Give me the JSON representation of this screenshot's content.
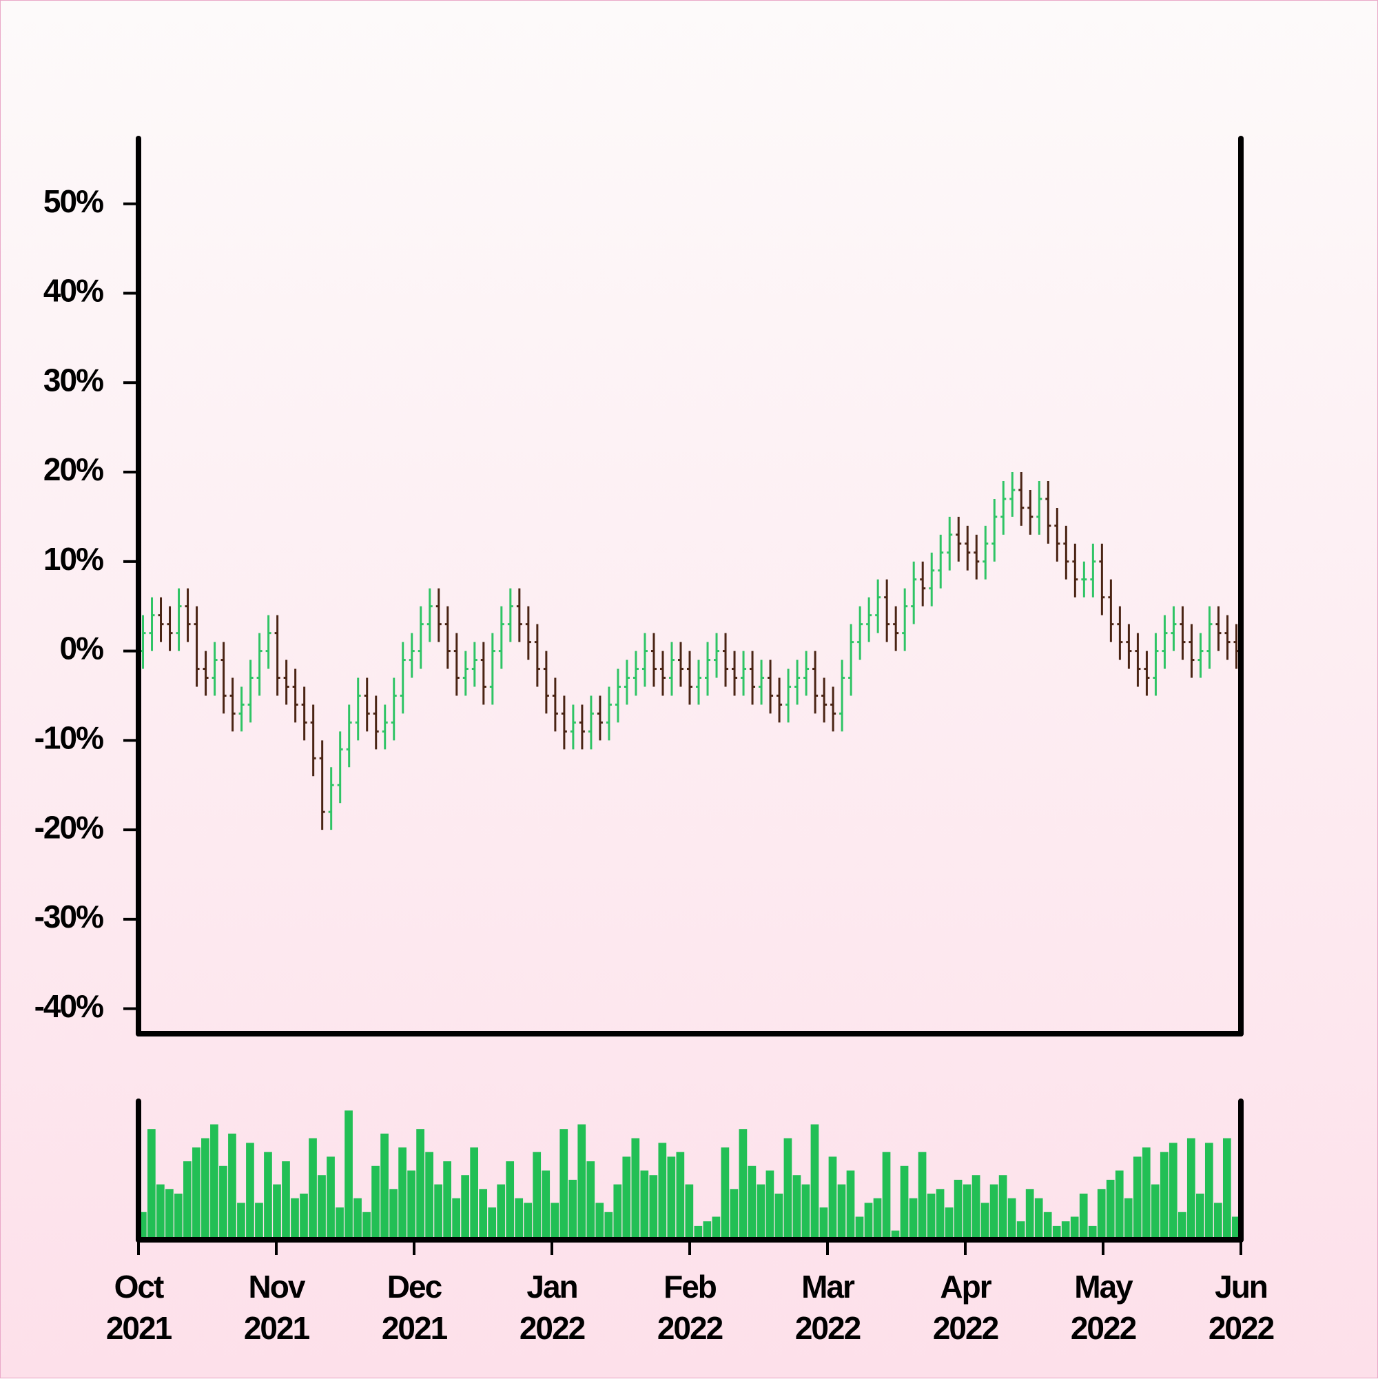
{
  "chart_data": {
    "type": "ohlc",
    "up_color": "#2fc465",
    "down_color": "#4a2414",
    "volume_color": "#22bf55",
    "ylim": [
      -42.8,
      57.3
    ],
    "yticks": [
      {
        "value": -40,
        "label": "-40%"
      },
      {
        "value": -30,
        "label": "-30%"
      },
      {
        "value": -20,
        "label": "-20%"
      },
      {
        "value": -10,
        "label": "-10%"
      },
      {
        "value": 0,
        "label": "0%"
      },
      {
        "value": 10,
        "label": "10%"
      },
      {
        "value": 20,
        "label": "20%"
      },
      {
        "value": 30,
        "label": "30%"
      },
      {
        "value": 40,
        "label": "40%"
      },
      {
        "value": 50,
        "label": "50%"
      }
    ],
    "xlim": [
      "2021-10",
      "2022-06"
    ],
    "xticks": [
      {
        "value": "2021-10",
        "label": "Oct\n2021"
      },
      {
        "value": "2021-11",
        "label": "Nov\n2021"
      },
      {
        "value": "2021-12",
        "label": "Dec\n2021"
      },
      {
        "value": "2022-01",
        "label": "Jan\n2022"
      },
      {
        "value": "2022-02",
        "label": "Feb\n2022"
      },
      {
        "value": "2022-03",
        "label": "Mar\n2022"
      },
      {
        "value": "2022-04",
        "label": "Apr\n2022"
      },
      {
        "value": "2022-05",
        "label": "May\n2022"
      },
      {
        "value": "2022-06",
        "label": "Jun\n2022"
      }
    ],
    "volume_ylim": [
      0,
      150
    ],
    "open": [
      0,
      2,
      4,
      3,
      2,
      5,
      3,
      -2,
      -3,
      -1,
      -5,
      -7,
      -6,
      -3,
      0,
      2,
      -3,
      -4,
      -6,
      -8,
      -12,
      -18,
      -15,
      -11,
      -8,
      -5,
      -7,
      -9,
      -8,
      -5,
      -1,
      0,
      3,
      5,
      3,
      0,
      -3,
      -2,
      -1,
      -4,
      0,
      3,
      5,
      3,
      1,
      -2,
      -5,
      -7,
      -9,
      -8,
      -9,
      -7,
      -8,
      -6,
      -4,
      -3,
      -2,
      0,
      -2,
      -3,
      -1,
      -2,
      -4,
      -3,
      -1,
      0,
      -2,
      -3,
      -2,
      -4,
      -3,
      -5,
      -6,
      -4,
      -3,
      -2,
      -5,
      -6,
      -7,
      -3,
      1,
      3,
      4,
      6,
      3,
      2,
      5,
      8,
      7,
      9,
      11,
      13,
      12,
      11,
      10,
      12,
      15,
      17,
      18,
      16,
      15,
      17,
      14,
      12,
      10,
      8,
      8,
      10,
      6,
      3,
      1,
      0,
      -2,
      -3,
      0,
      2,
      3,
      1,
      -1,
      0,
      3,
      2,
      1
    ],
    "high": [
      4,
      6,
      6,
      5,
      7,
      7,
      5,
      0,
      1,
      1,
      -3,
      -4,
      -1,
      2,
      4,
      4,
      -1,
      -2,
      -4,
      -6,
      -10,
      -13,
      -9,
      -6,
      -3,
      -3,
      -5,
      -6,
      -3,
      1,
      2,
      5,
      7,
      7,
      5,
      2,
      0,
      1,
      1,
      2,
      5,
      7,
      7,
      5,
      3,
      0,
      -3,
      -5,
      -6,
      -6,
      -5,
      -5,
      -4,
      -2,
      -1,
      0,
      2,
      2,
      0,
      1,
      1,
      0,
      -1,
      1,
      2,
      2,
      0,
      0,
      0,
      -1,
      -1,
      -3,
      -2,
      -1,
      0,
      0,
      -3,
      -4,
      -1,
      3,
      5,
      6,
      8,
      8,
      5,
      7,
      10,
      10,
      11,
      13,
      15,
      15,
      14,
      13,
      14,
      17,
      19,
      20,
      20,
      18,
      19,
      19,
      16,
      14,
      12,
      10,
      12,
      12,
      8,
      5,
      3,
      2,
      0,
      2,
      4,
      5,
      5,
      3,
      2,
      5,
      5,
      4,
      3
    ],
    "low": [
      -2,
      0,
      1,
      0,
      0,
      1,
      -4,
      -5,
      -5,
      -7,
      -9,
      -9,
      -8,
      -5,
      -2,
      -5,
      -6,
      -8,
      -10,
      -14,
      -20,
      -20,
      -17,
      -13,
      -10,
      -9,
      -11,
      -11,
      -10,
      -7,
      -3,
      -2,
      1,
      1,
      -2,
      -5,
      -5,
      -4,
      -6,
      -6,
      -2,
      1,
      1,
      -1,
      -4,
      -7,
      -9,
      -11,
      -11,
      -11,
      -11,
      -10,
      -10,
      -8,
      -6,
      -5,
      -4,
      -4,
      -5,
      -5,
      -4,
      -6,
      -6,
      -5,
      -3,
      -4,
      -5,
      -5,
      -6,
      -6,
      -7,
      -8,
      -8,
      -6,
      -5,
      -7,
      -8,
      -9,
      -9,
      -5,
      -1,
      1,
      2,
      1,
      0,
      0,
      3,
      5,
      5,
      7,
      9,
      10,
      9,
      8,
      8,
      10,
      13,
      15,
      14,
      13,
      13,
      12,
      10,
      8,
      6,
      6,
      6,
      4,
      1,
      -1,
      -2,
      -4,
      -5,
      -5,
      -2,
      0,
      -1,
      -3,
      -3,
      -2,
      0,
      -1,
      -2
    ],
    "close": [
      2,
      4,
      3,
      2,
      5,
      3,
      -2,
      -3,
      -1,
      -5,
      -7,
      -6,
      -3,
      0,
      2,
      -3,
      -4,
      -6,
      -8,
      -12,
      -18,
      -15,
      -11,
      -8,
      -5,
      -7,
      -9,
      -8,
      -5,
      -1,
      0,
      3,
      5,
      3,
      0,
      -3,
      -2,
      -1,
      -4,
      0,
      3,
      5,
      3,
      1,
      -2,
      -5,
      -7,
      -9,
      -8,
      -9,
      -7,
      -8,
      -6,
      -4,
      -3,
      -2,
      0,
      -2,
      -3,
      -1,
      -2,
      -4,
      -3,
      -1,
      0,
      -2,
      -3,
      -2,
      -4,
      -3,
      -5,
      -6,
      -4,
      -3,
      -2,
      -5,
      -6,
      -7,
      -3,
      1,
      3,
      4,
      6,
      3,
      2,
      5,
      8,
      7,
      9,
      11,
      13,
      12,
      11,
      10,
      12,
      15,
      17,
      18,
      16,
      15,
      17,
      14,
      12,
      10,
      8,
      8,
      10,
      6,
      3,
      1,
      0,
      -2,
      -3,
      0,
      2,
      3,
      1,
      -1,
      0,
      3,
      2,
      1,
      0
    ],
    "volume": [
      30,
      120,
      60,
      55,
      50,
      85,
      100,
      110,
      125,
      80,
      115,
      40,
      105,
      40,
      95,
      60,
      85,
      45,
      50,
      110,
      70,
      90,
      35,
      140,
      45,
      30,
      80,
      115,
      55,
      100,
      75,
      120,
      95,
      60,
      85,
      45,
      70,
      100,
      55,
      35,
      60,
      85,
      45,
      40,
      95,
      75,
      40,
      120,
      65,
      125,
      85,
      40,
      30,
      60,
      90,
      110,
      75,
      70,
      105,
      90,
      95,
      60,
      15,
      20,
      25,
      100,
      55,
      120,
      80,
      60,
      75,
      50,
      110,
      70,
      60,
      125,
      35,
      90,
      60,
      75,
      25,
      40,
      45,
      95,
      10,
      80,
      45,
      95,
      50,
      55,
      35,
      65,
      60,
      70,
      40,
      60,
      70,
      45,
      20,
      55,
      45,
      30,
      15,
      20,
      25,
      50,
      15,
      55,
      65,
      75,
      45,
      90,
      100,
      60,
      95,
      105,
      30,
      110,
      50,
      105,
      40,
      110,
      25
    ]
  }
}
